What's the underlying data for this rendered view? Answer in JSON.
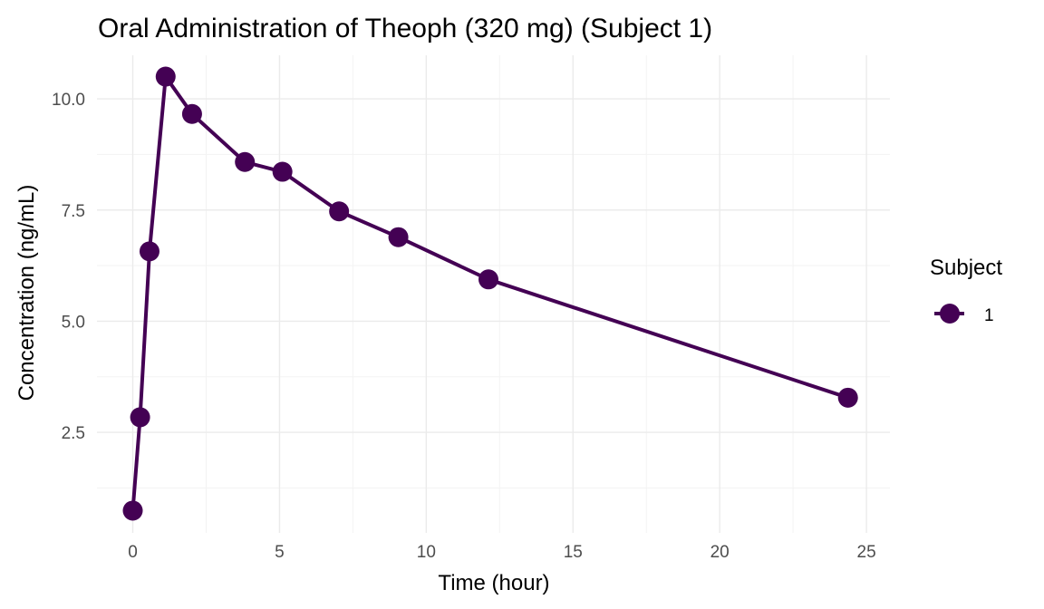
{
  "chart_data": {
    "type": "line",
    "title": "Oral Administration of Theoph (320 mg) (Subject 1)",
    "xlabel": "Time (hour)",
    "ylabel": "Concentration (ng/mL)",
    "xlim": [
      -1.22,
      25.8
    ],
    "ylim": [
      0.24,
      10.98
    ],
    "x_ticks": [
      0,
      5,
      10,
      15,
      20,
      25
    ],
    "x_tick_labels": [
      "0",
      "5",
      "10",
      "15",
      "20",
      "25"
    ],
    "y_ticks": [
      2.5,
      5.0,
      7.5,
      10.0
    ],
    "y_tick_labels": [
      "2.5",
      "5.0",
      "7.5",
      "10.0"
    ],
    "grid": true,
    "legend": {
      "title": "Subject",
      "position": "right"
    },
    "series": [
      {
        "name": "1",
        "color": "#440154",
        "x": [
          0,
          0.25,
          0.57,
          1.12,
          2.02,
          3.82,
          5.1,
          7.03,
          9.05,
          12.12,
          24.37
        ],
        "y": [
          0.74,
          2.84,
          6.57,
          10.5,
          9.66,
          8.58,
          8.36,
          7.47,
          6.89,
          5.94,
          3.28
        ]
      }
    ]
  }
}
